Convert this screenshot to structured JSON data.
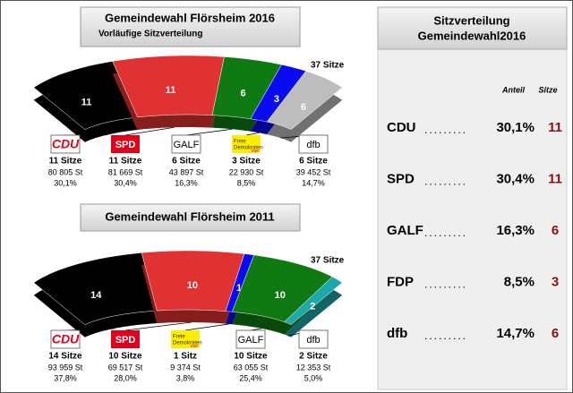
{
  "chart_data": [
    {
      "type": "seat-arc",
      "title": "Gemeindewahl Flörsheim  2016",
      "subtitle": "Vorläufige Sitzverteilung",
      "total_label": "37 Sitze",
      "parties": [
        {
          "name": "CDU",
          "seats": 11,
          "seats_label": "11 Sitze",
          "votes": "80 805 St",
          "share": "30,1%",
          "color": "#000000",
          "logo_fill": "#ffffff",
          "logo_color": "#e2001a"
        },
        {
          "name": "SPD",
          "seats": 11,
          "seats_label": "11 Sitze",
          "votes": "81 669 St",
          "share": "30,4%",
          "color": "#e03232",
          "logo_fill": "#e2001a",
          "logo_color": "#ffffff"
        },
        {
          "name": "GALF",
          "seats": 6,
          "seats_label": "6 Sitze",
          "votes": "43 897 St",
          "share": "16,3%",
          "color": "#0f7a12",
          "logo_fill": "#ffffff",
          "logo_color": "#000000"
        },
        {
          "name": "FDP",
          "logo_text": "Freie Demokraten",
          "seats": 3,
          "seats_label": "3 Sitze",
          "votes": "22 930 St",
          "share": "8,5%",
          "color": "#0a0af0",
          "logo_fill": "#ffed00",
          "logo_color": "#333333"
        },
        {
          "name": "dfb",
          "seats": 6,
          "seats_label": "6 Sitze",
          "votes": "39 452 St",
          "share": "14,7%",
          "color": "#bdbdbd",
          "logo_fill": "#ffffff",
          "logo_color": "#000000"
        }
      ]
    },
    {
      "type": "seat-arc",
      "title": "Gemeindewahl Flörsheim 2011",
      "total_label": "37 Sitze",
      "parties": [
        {
          "name": "CDU",
          "seats": 14,
          "seats_label": "14 Sitze",
          "votes": "93 959 St",
          "share": "37,8%",
          "color": "#000000",
          "logo_fill": "#ffffff",
          "logo_color": "#e2001a"
        },
        {
          "name": "SPD",
          "seats": 10,
          "seats_label": "10 Sitze",
          "votes": "69 517 St",
          "share": "28,0%",
          "color": "#e03232",
          "logo_fill": "#e2001a",
          "logo_color": "#ffffff"
        },
        {
          "name": "FDP",
          "logo_text": "Freie Demokraten",
          "seats": 1,
          "seats_label": "1 Sitz",
          "votes": "9 374 St",
          "share": "3,8%",
          "color": "#0a0af0",
          "logo_fill": "#ffed00",
          "logo_color": "#333333"
        },
        {
          "name": "GALF",
          "seats": 10,
          "seats_label": "10 Sitze",
          "votes": "63 055 St",
          "share": "25,4%",
          "color": "#0f7a12",
          "logo_fill": "#ffffff",
          "logo_color": "#000000"
        },
        {
          "name": "dfb",
          "seats": 2,
          "seats_label": "2 Sitze",
          "votes": "12 353 St",
          "share": "5,0%",
          "color": "#1fa8a8",
          "logo_fill": "#ffffff",
          "logo_color": "#000000"
        }
      ]
    }
  ],
  "table": {
    "title": [
      "Sitzverteilung",
      "Gemeindewahl2016"
    ],
    "columns": [
      "Anteil",
      "Sitze"
    ],
    "rows": [
      [
        "CDU",
        "30,1%",
        "11"
      ],
      [
        "SPD",
        "30,4%",
        "11"
      ],
      [
        "GALF",
        "16,3%",
        "6"
      ],
      [
        "FDP",
        "8,5%",
        "3"
      ],
      [
        "dfb",
        "14,7%",
        "6"
      ]
    ]
  }
}
